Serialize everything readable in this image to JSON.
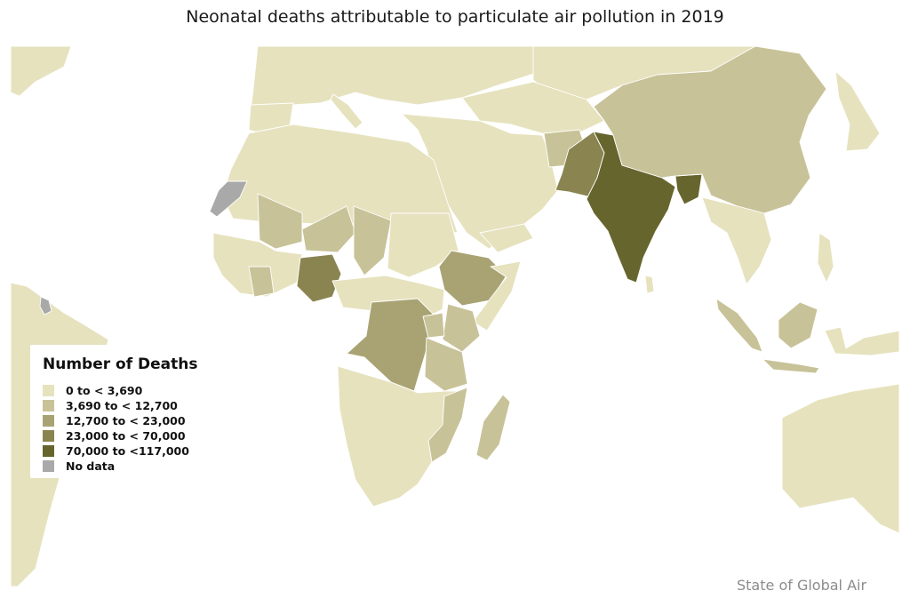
{
  "title": "Neonatal deaths attributable to particulate air pollution in 2019",
  "source": "State of Global Air",
  "legend": {
    "title": "Number of Deaths",
    "items": [
      {
        "label": "0 to < 3,690",
        "color": "#e6e2be"
      },
      {
        "label": "3,690 to < 12,700",
        "color": "#c8c298"
      },
      {
        "label": "12,700 to < 23,000",
        "color": "#a9a374"
      },
      {
        "label": "23,000 to < 70,000",
        "color": "#8a8450"
      },
      {
        "label": "70,000 to <117,000",
        "color": "#67652e"
      },
      {
        "label": "No data",
        "color": "#a9a9a9"
      }
    ]
  },
  "colors": {
    "background": "#ffffff",
    "class_1": "#e6e2be",
    "class_2": "#c8c298",
    "class_3": "#a9a374",
    "class_4": "#8a8450",
    "class_5": "#67652e",
    "no_data": "#a9a9a9"
  }
}
